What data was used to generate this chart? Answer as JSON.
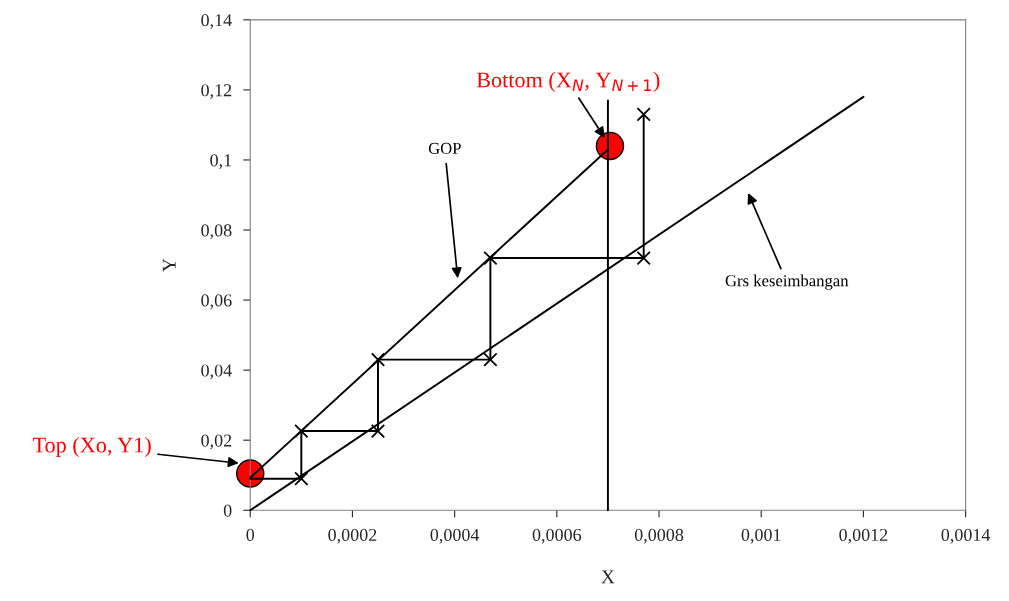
{
  "chart_data": {
    "type": "line",
    "xlabel": "X",
    "ylabel": "Y",
    "xlim": [
      0,
      0.0014
    ],
    "ylim": [
      0,
      0.14
    ],
    "xticks": [
      {
        "value": 0,
        "label": "0"
      },
      {
        "value": 0.0002,
        "label": "0,0002"
      },
      {
        "value": 0.0004,
        "label": "0,0004"
      },
      {
        "value": 0.0006,
        "label": "0,0006"
      },
      {
        "value": 0.0008,
        "label": "0,0008"
      },
      {
        "value": 0.001,
        "label": "0,001"
      },
      {
        "value": 0.0012,
        "label": "0,0012"
      },
      {
        "value": 0.0014,
        "label": "0,0014"
      }
    ],
    "yticks": [
      {
        "value": 0,
        "label": "0"
      },
      {
        "value": 0.02,
        "label": "0,02"
      },
      {
        "value": 0.04,
        "label": "0,04"
      },
      {
        "value": 0.06,
        "label": "0,06"
      },
      {
        "value": 0.08,
        "label": "0,08"
      },
      {
        "value": 0.1,
        "label": "0,1"
      },
      {
        "value": 0.12,
        "label": "0,12"
      },
      {
        "value": 0.14,
        "label": "0,14"
      }
    ],
    "grid": false,
    "legend": false,
    "series": [
      {
        "type": "line",
        "color": "#000000",
        "marker": "none",
        "x": [
          0,
          0.0012
        ],
        "values": [
          0,
          0.118
        ]
      },
      {
        "type": "line",
        "color": "#000000",
        "marker": "none",
        "x": [
          0,
          0.0007
        ],
        "values": [
          0.0093,
          0.103
        ]
      },
      {
        "type": "line",
        "color": "#000000",
        "marker": "cross",
        "x": [
          0.0001,
          0.0001,
          0.00025,
          0.00025,
          0.00047,
          0.00047,
          0.00077,
          0.00077
        ],
        "values": [
          0.009,
          0.0226,
          0.0226,
          0.043,
          0.043,
          0.072,
          0.072,
          0.113
        ]
      },
      {
        "type": "line",
        "color": "#000000",
        "marker": "none",
        "x": [
          0,
          0.0001
        ],
        "values": [
          0.009,
          0.009
        ]
      },
      {
        "type": "line",
        "color": "#000000",
        "marker": "none",
        "x": [
          0.0007,
          0.0007
        ],
        "values": [
          0,
          0.117
        ]
      },
      {
        "type": "scatter",
        "color": "#ff0000",
        "marker": "circle",
        "x": [
          0,
          0.000704
        ],
        "values": [
          0.0105,
          0.104
        ]
      }
    ],
    "annotations": [
      "Top (Xo, Y1)",
      {
        "text": "Bottom (X$_{N}$, Y$_{N+1}$)",
        "x": 0.000704,
        "y": 0.104
      },
      "GOP",
      "Grs keseimbangan"
    ]
  }
}
